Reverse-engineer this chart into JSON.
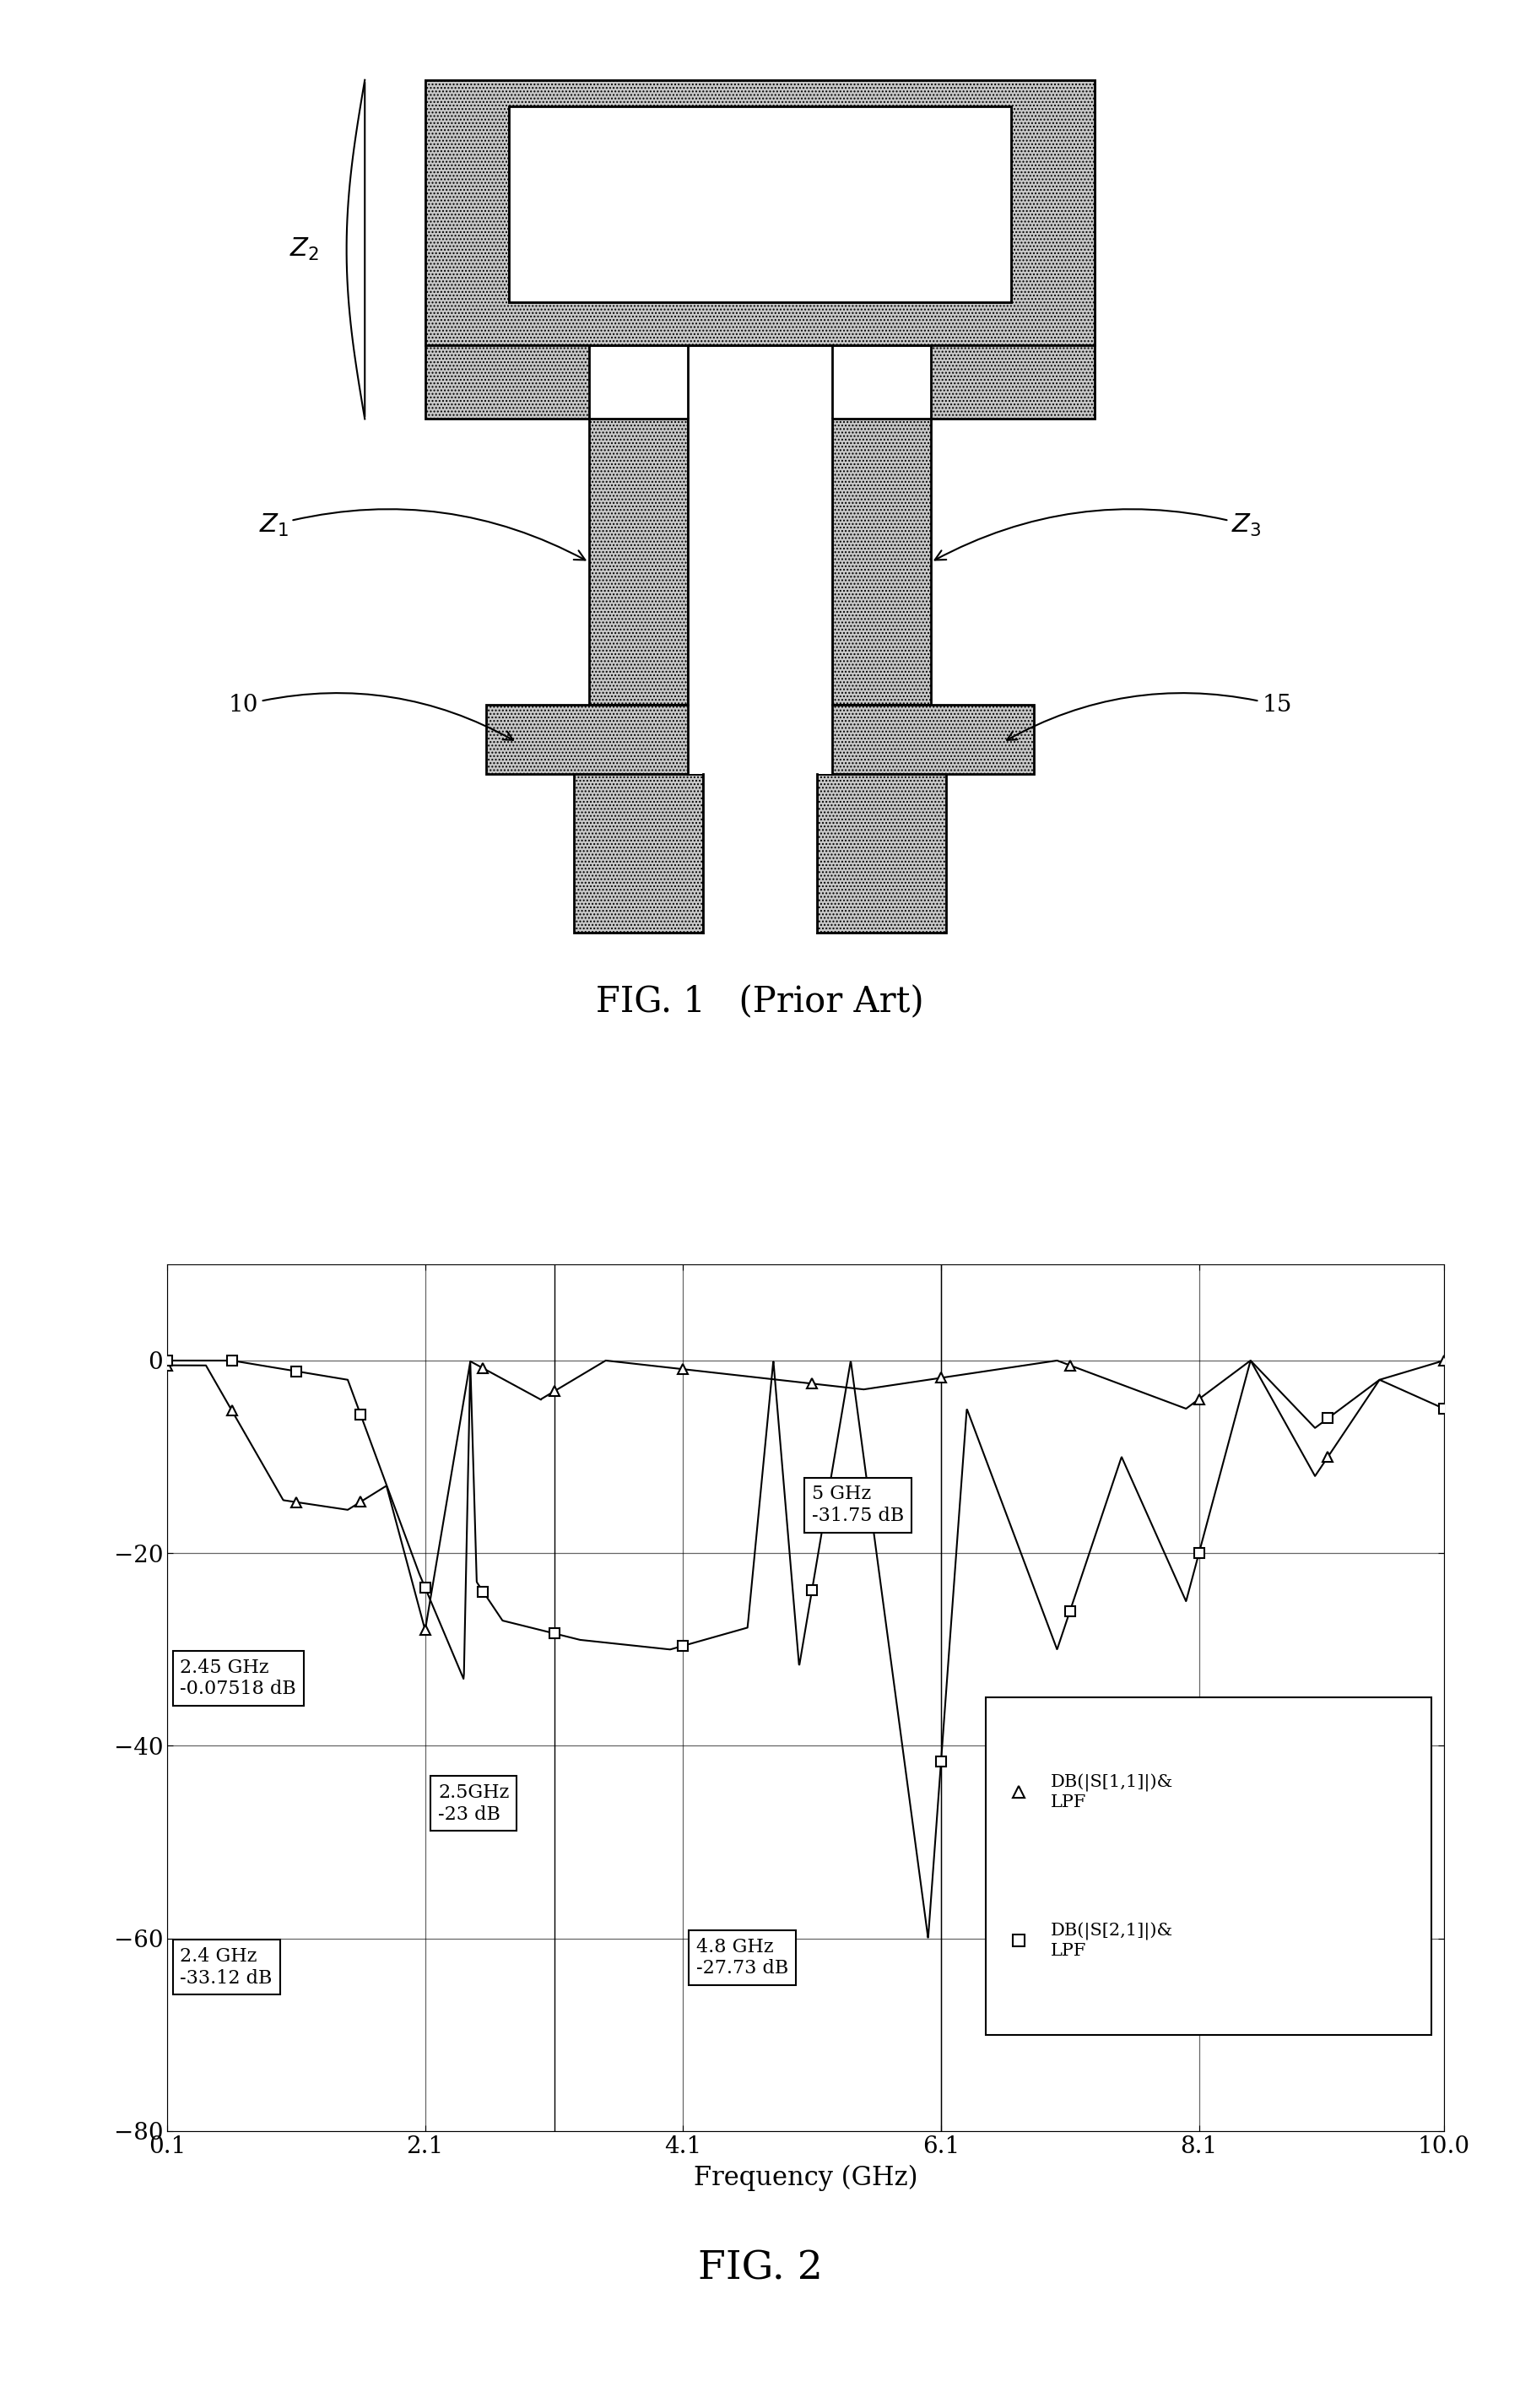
{
  "fig1_caption": "FIG. 1   (Prior Art)",
  "fig2_caption": "FIG. 2",
  "xlabel": "Frequency (GHz)",
  "xlim": [
    0.1,
    10
  ],
  "ylim": [
    -80,
    10
  ],
  "xticks": [
    0.1,
    2.1,
    4.1,
    6.1,
    8.1,
    10
  ],
  "yticks": [
    0,
    -20,
    -40,
    -60,
    -80
  ],
  "background_color": "#ffffff",
  "s11_marker_freqs": [
    0.1,
    0.6,
    1.1,
    1.6,
    2.1,
    2.55,
    3.1,
    4.1,
    5.1,
    6.1,
    7.1,
    8.1,
    9.1,
    10.0
  ],
  "s21_marker_freqs": [
    0.1,
    0.6,
    1.1,
    1.6,
    2.1,
    2.55,
    3.1,
    4.1,
    5.1,
    6.1,
    7.1,
    8.1,
    9.1,
    10.0
  ]
}
